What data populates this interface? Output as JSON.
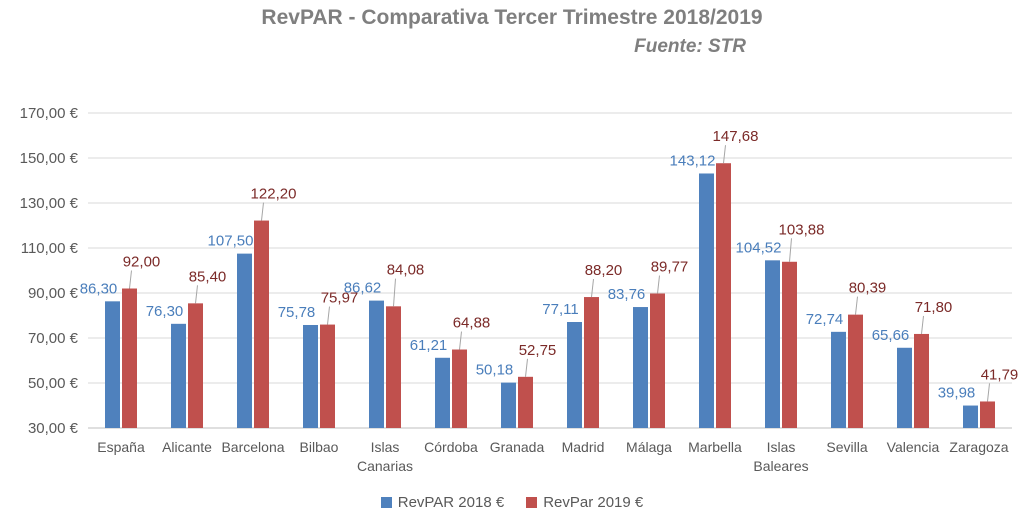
{
  "chart_data": {
    "type": "bar",
    "title": "RevPAR  - Comparativa Tercer Trimestre 2018/2019",
    "subtitle": "Fuente: STR",
    "categories": [
      [
        "España"
      ],
      [
        "Alicante"
      ],
      [
        "Barcelona"
      ],
      [
        "Bilbao"
      ],
      [
        "Islas",
        "Canarias"
      ],
      [
        "Córdoba"
      ],
      [
        "Granada"
      ],
      [
        "Madrid"
      ],
      [
        "Málaga"
      ],
      [
        "Marbella"
      ],
      [
        "Islas",
        "Baleares"
      ],
      [
        "Sevilla"
      ],
      [
        "Valencia"
      ],
      [
        "Zaragoza"
      ]
    ],
    "series": [
      {
        "name": "RevPAR 2018 €",
        "color": "#4f81bd",
        "label_color": "#4a7ebb",
        "values": [
          86.3,
          76.3,
          107.5,
          75.78,
          86.62,
          61.21,
          50.18,
          77.11,
          83.76,
          143.12,
          104.52,
          72.74,
          65.66,
          39.98
        ],
        "labels": [
          "86,30",
          "76,30",
          "107,50",
          "75,78",
          "86,62",
          "61,21",
          "50,18",
          "77,11",
          "83,76",
          "143,12",
          "104,52",
          "72,74",
          "65,66",
          "39,98"
        ]
      },
      {
        "name": "RevPar 2019 €",
        "color": "#c0504d",
        "label_color": "#7b2a28",
        "values": [
          92.0,
          85.4,
          122.2,
          75.97,
          84.08,
          64.88,
          52.75,
          88.2,
          89.77,
          147.68,
          103.88,
          80.39,
          71.8,
          41.79
        ],
        "labels": [
          "92,00",
          "85,40",
          "122,20",
          "75,97",
          "84,08",
          "64,88",
          "52,75",
          "88,20",
          "89,77",
          "147,68",
          "103,88",
          "80,39",
          "71,80",
          "41,79"
        ]
      }
    ],
    "y_ticks": [
      "30,00 €",
      "50,00 €",
      "70,00 €",
      "90,00 €",
      "110,00 €",
      "130,00 €",
      "150,00 €",
      "170,00 €"
    ],
    "ylim": [
      30,
      170
    ],
    "grid": true,
    "legend": "bottom"
  }
}
